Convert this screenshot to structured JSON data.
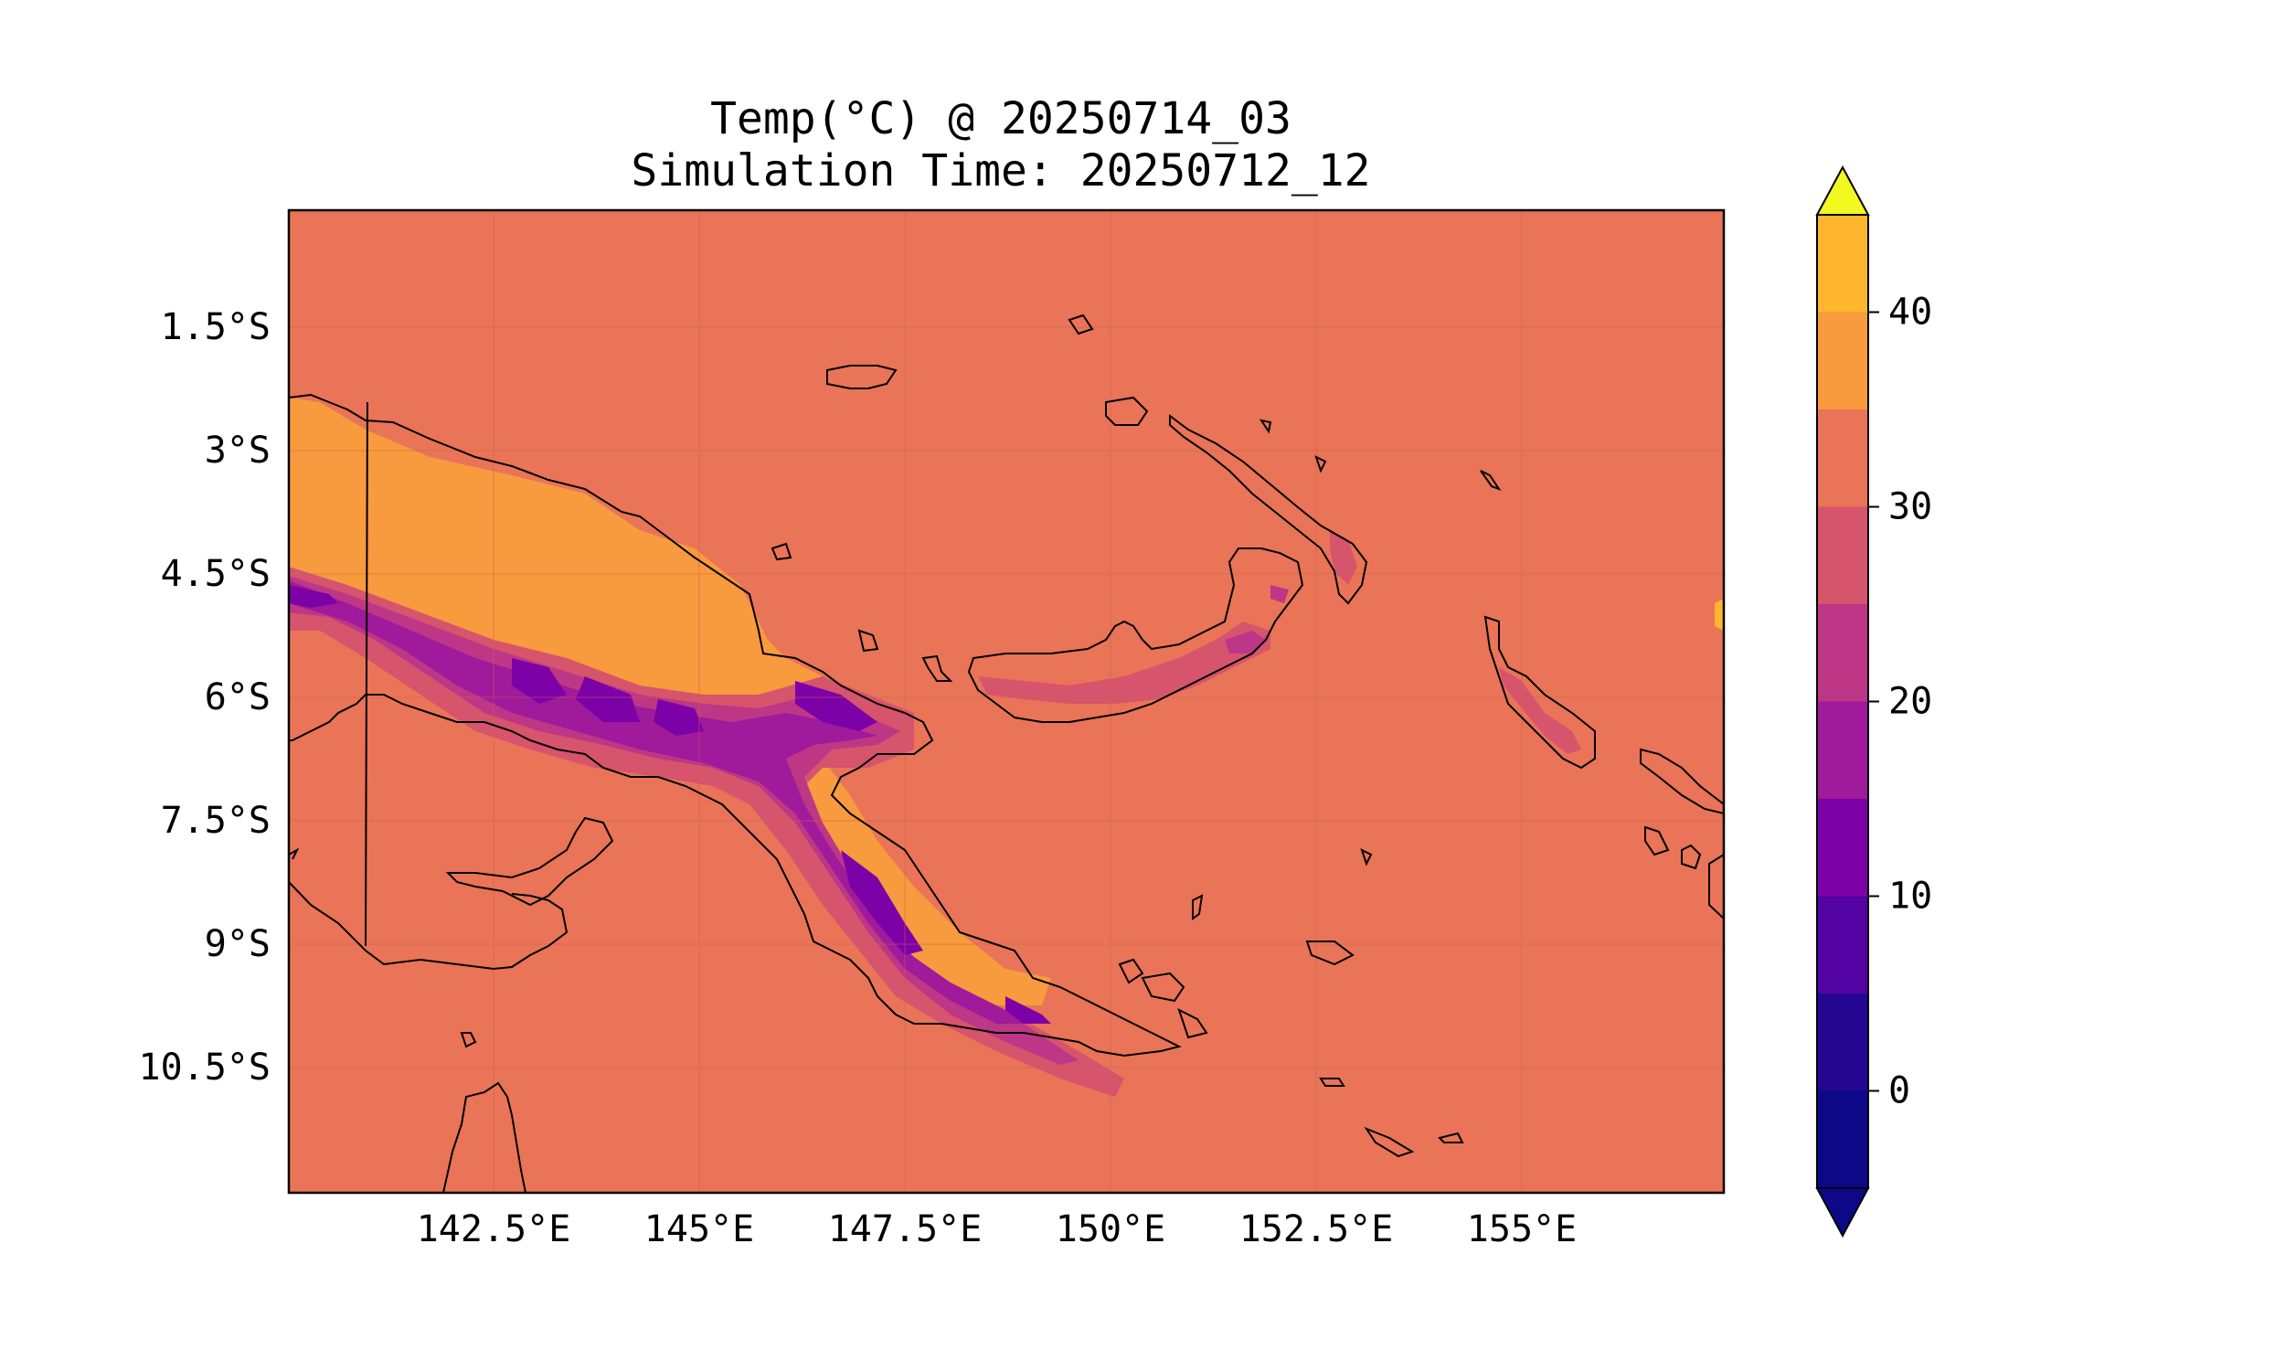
{
  "title": {
    "line1": "Temp(°C) @ 20250714_03",
    "line2": "Simulation Time: 20250712_12"
  },
  "map": {
    "x_ticks": [
      "142.5°E",
      "145°E",
      "147.5°E",
      "150°E",
      "152.5°E",
      "155°E"
    ],
    "y_ticks": [
      "1.5°S",
      "3°S",
      "4.5°S",
      "6°S",
      "7.5°S",
      "9°S",
      "10.5°S"
    ],
    "background_color": "#e97457",
    "grid": true
  },
  "colorbar": {
    "levels": [
      -5,
      0,
      5,
      10,
      15,
      20,
      25,
      30,
      35,
      40,
      45
    ],
    "colors": [
      "#0d0887",
      "#240691",
      "#5302a3",
      "#7c02a7",
      "#a01a9c",
      "#bd3786",
      "#d6546c",
      "#e97457",
      "#f89a3e",
      "#fdb62d",
      "#f1e12a"
    ],
    "extend_low_color": "#0d0887",
    "extend_high_color": "#f0f921",
    "tick_values": [
      0,
      10,
      20,
      30,
      40
    ],
    "tick_labels": [
      "0",
      "10",
      "20",
      "30",
      "40"
    ]
  }
}
